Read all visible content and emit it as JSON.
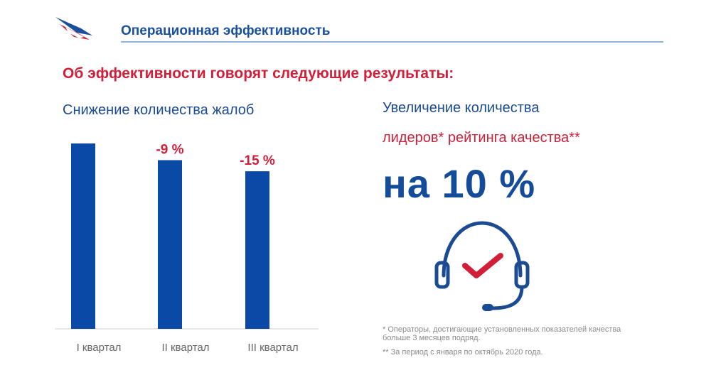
{
  "header": {
    "title": "Операционная эффективность"
  },
  "headline": "Об эффективности говорят следующие результаты:",
  "chart_data": {
    "type": "bar",
    "title": "Снижение количества жалоб",
    "categories": [
      "I квартал",
      "II квартал",
      "III квартал"
    ],
    "values": [
      100,
      91,
      85
    ],
    "data_labels": [
      "",
      "-9 %",
      "-15 %"
    ],
    "ylim": [
      0,
      100
    ],
    "grid": false,
    "bar_color": "#0a4aa6",
    "label_color": "#d11f3a"
  },
  "right_panel": {
    "line1": "Увеличение количества",
    "line2": "лидеров* рейтинга качества**",
    "big_value": "на 10 %"
  },
  "footnotes": {
    "first": "* Операторы, достигающие установленных показателей качества больше 3 месяцев подряд.",
    "second": "** За период с января по октябрь 2020 года."
  },
  "icons": {
    "logo": "airline-logo-icon",
    "headset": "headset-check-icon"
  },
  "colors": {
    "brand_blue": "#154c9a",
    "accent_red": "#d11f3a"
  }
}
